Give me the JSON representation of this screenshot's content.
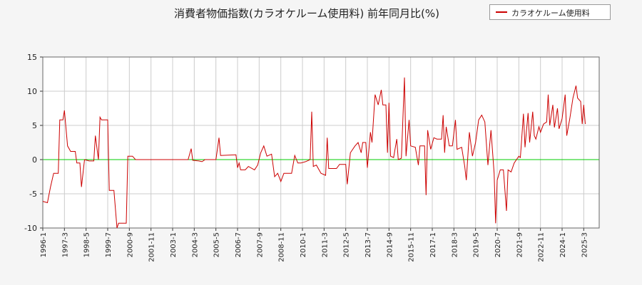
{
  "chart_data": {
    "type": "line",
    "title": "消費者物価指数(カラオケルーム使用料) 前年同月比(%)",
    "xlabel": "",
    "ylabel": "",
    "ylim": [
      -10,
      15
    ],
    "yticks": [
      -10,
      -5,
      0,
      5,
      10,
      15
    ],
    "xlim": [
      "1996-1",
      "2026-1"
    ],
    "xticks": [
      "1996-1",
      "1997-3",
      "1998-5",
      "1999-7",
      "2000-9",
      "2001-11",
      "2003-1",
      "2004-3",
      "2005-5",
      "2006-7",
      "2007-9",
      "2008-11",
      "2010-1",
      "2011-3",
      "2012-5",
      "2013-7",
      "2014-9",
      "2015-11",
      "2017-1",
      "2018-3",
      "2019-5",
      "2020-7",
      "2021-9",
      "2022-11",
      "2024-1",
      "2025-3"
    ],
    "grid": true,
    "legend_position": "top-right",
    "zero_line_color": "#00cc00",
    "series": [
      {
        "name": "カラオケルーム使用料",
        "color": "#cc0000",
        "points": [
          [
            "1996-1",
            -6.1
          ],
          [
            "1996-4",
            -6.3
          ],
          [
            "1996-6",
            -4.0
          ],
          [
            "1996-8",
            -2.0
          ],
          [
            "1996-11",
            -2.0
          ],
          [
            "1996-12",
            5.8
          ],
          [
            "1997-2",
            5.8
          ],
          [
            "1997-3",
            7.2
          ],
          [
            "1997-5",
            2.0
          ],
          [
            "1997-7",
            1.2
          ],
          [
            "1997-10",
            1.2
          ],
          [
            "1997-11",
            -0.5
          ],
          [
            "1998-1",
            -0.5
          ],
          [
            "1998-2",
            -4.0
          ],
          [
            "1998-4",
            0.0
          ],
          [
            "1998-7",
            -0.2
          ],
          [
            "1998-10",
            -0.2
          ],
          [
            "1998-11",
            3.5
          ],
          [
            "1999-1",
            0.0
          ],
          [
            "1999-2",
            6.2
          ],
          [
            "1999-3",
            5.8
          ],
          [
            "1999-7",
            5.8
          ],
          [
            "1999-8",
            -4.5
          ],
          [
            "1999-11",
            -4.5
          ],
          [
            "2000-1",
            -10.0
          ],
          [
            "2000-2",
            -9.3
          ],
          [
            "2000-7",
            -9.3
          ],
          [
            "2000-8",
            0.5
          ],
          [
            "2000-11",
            0.5
          ],
          [
            "2001-1",
            0.0
          ],
          [
            "2003-11",
            0.0
          ],
          [
            "2004-1",
            1.6
          ],
          [
            "2004-2",
            -0.1
          ],
          [
            "2004-6",
            -0.2
          ],
          [
            "2004-8",
            -0.3
          ],
          [
            "2004-10",
            0.0
          ],
          [
            "2005-2",
            0.0
          ],
          [
            "2005-5",
            0.0
          ],
          [
            "2005-7",
            3.2
          ],
          [
            "2005-8",
            0.6
          ],
          [
            "2006-6",
            0.7
          ],
          [
            "2006-7",
            -1.2
          ],
          [
            "2006-8",
            -0.5
          ],
          [
            "2006-9",
            -1.5
          ],
          [
            "2006-12",
            -1.5
          ],
          [
            "2007-2",
            -1.0
          ],
          [
            "2007-6",
            -1.5
          ],
          [
            "2007-8",
            -0.8
          ],
          [
            "2007-10",
            1.0
          ],
          [
            "2007-12",
            2.0
          ],
          [
            "2008-2",
            0.5
          ],
          [
            "2008-5",
            0.8
          ],
          [
            "2008-7",
            -2.5
          ],
          [
            "2008-9",
            -2.0
          ],
          [
            "2008-11",
            -3.2
          ],
          [
            "2009-1",
            -2.0
          ],
          [
            "2009-6",
            -2.0
          ],
          [
            "2009-8",
            0.6
          ],
          [
            "2009-10",
            -0.5
          ],
          [
            "2009-12",
            -0.5
          ],
          [
            "2010-3",
            -0.3
          ],
          [
            "2010-6",
            0.0
          ],
          [
            "2010-7",
            7.0
          ],
          [
            "2010-8",
            -1.0
          ],
          [
            "2010-10",
            -0.8
          ],
          [
            "2011-1",
            -2.0
          ],
          [
            "2011-4",
            -2.3
          ],
          [
            "2011-5",
            3.2
          ],
          [
            "2011-6",
            -1.3
          ],
          [
            "2011-11",
            -1.3
          ],
          [
            "2012-1",
            -0.7
          ],
          [
            "2012-5",
            -0.7
          ],
          [
            "2012-6",
            -3.6
          ],
          [
            "2012-8",
            1.0
          ],
          [
            "2012-11",
            2.0
          ],
          [
            "2013-1",
            2.5
          ],
          [
            "2013-3",
            1.0
          ],
          [
            "2013-4",
            2.5
          ],
          [
            "2013-6",
            2.5
          ],
          [
            "2013-7",
            -1.2
          ],
          [
            "2013-9",
            4.0
          ],
          [
            "2013-10",
            2.5
          ],
          [
            "2013-12",
            9.5
          ],
          [
            "2014-2",
            8.0
          ],
          [
            "2014-4",
            10.2
          ],
          [
            "2014-5",
            8.0
          ],
          [
            "2014-7",
            8.0
          ],
          [
            "2014-8",
            1.0
          ],
          [
            "2014-9",
            8.3
          ],
          [
            "2014-10",
            0.5
          ],
          [
            "2014-12",
            0.3
          ],
          [
            "2015-2",
            3.0
          ],
          [
            "2015-3",
            0.0
          ],
          [
            "2015-5",
            0.2
          ],
          [
            "2015-7",
            12.0
          ],
          [
            "2015-8",
            0.5
          ],
          [
            "2015-10",
            5.8
          ],
          [
            "2015-11",
            2.0
          ],
          [
            "2016-2",
            1.8
          ],
          [
            "2016-4",
            -0.8
          ],
          [
            "2016-5",
            2.0
          ],
          [
            "2016-8",
            2.0
          ],
          [
            "2016-9",
            -5.2
          ],
          [
            "2016-10",
            4.3
          ],
          [
            "2016-12",
            1.5
          ],
          [
            "2017-2",
            3.2
          ],
          [
            "2017-4",
            3.0
          ],
          [
            "2017-7",
            3.0
          ],
          [
            "2017-8",
            6.5
          ],
          [
            "2017-9",
            1.0
          ],
          [
            "2017-10",
            4.8
          ],
          [
            "2017-12",
            2.0
          ],
          [
            "2018-2",
            2.0
          ],
          [
            "2018-4",
            5.8
          ],
          [
            "2018-5",
            1.5
          ],
          [
            "2018-8",
            1.8
          ],
          [
            "2018-10",
            -1.0
          ],
          [
            "2018-11",
            -3.0
          ],
          [
            "2019-1",
            4.0
          ],
          [
            "2019-3",
            0.5
          ],
          [
            "2019-5",
            2.5
          ],
          [
            "2019-7",
            5.8
          ],
          [
            "2019-9",
            6.5
          ],
          [
            "2019-11",
            5.5
          ],
          [
            "2020-1",
            -0.8
          ],
          [
            "2020-3",
            4.3
          ],
          [
            "2020-5",
            -2.0
          ],
          [
            "2020-6",
            -9.3
          ],
          [
            "2020-7",
            -3.0
          ],
          [
            "2020-9",
            -1.5
          ],
          [
            "2020-11",
            -1.5
          ],
          [
            "2021-1",
            -7.5
          ],
          [
            "2021-2",
            -1.5
          ],
          [
            "2021-4",
            -1.8
          ],
          [
            "2021-6",
            -0.5
          ],
          [
            "2021-9",
            0.5
          ],
          [
            "2021-10",
            0.3
          ],
          [
            "2021-12",
            6.7
          ],
          [
            "2022-1",
            1.8
          ],
          [
            "2022-3",
            6.8
          ],
          [
            "2022-4",
            2.5
          ],
          [
            "2022-6",
            7.0
          ],
          [
            "2022-7",
            3.5
          ],
          [
            "2022-8",
            3.0
          ],
          [
            "2022-10",
            4.8
          ],
          [
            "2022-11",
            4.0
          ],
          [
            "2023-1",
            5.2
          ],
          [
            "2023-3",
            5.5
          ],
          [
            "2023-4",
            9.5
          ],
          [
            "2023-5",
            5.0
          ],
          [
            "2023-7",
            8.0
          ],
          [
            "2023-8",
            4.7
          ],
          [
            "2023-10",
            7.5
          ],
          [
            "2023-11",
            4.5
          ],
          [
            "2024-1",
            6.0
          ],
          [
            "2024-3",
            9.5
          ],
          [
            "2024-4",
            3.5
          ],
          [
            "2024-6",
            6.0
          ],
          [
            "2024-8",
            9.0
          ],
          [
            "2024-10",
            10.8
          ],
          [
            "2024-11",
            9.0
          ],
          [
            "2025-1",
            8.5
          ],
          [
            "2025-2",
            5.2
          ],
          [
            "2025-3",
            8.0
          ],
          [
            "2025-4",
            5.2
          ]
        ]
      }
    ]
  }
}
